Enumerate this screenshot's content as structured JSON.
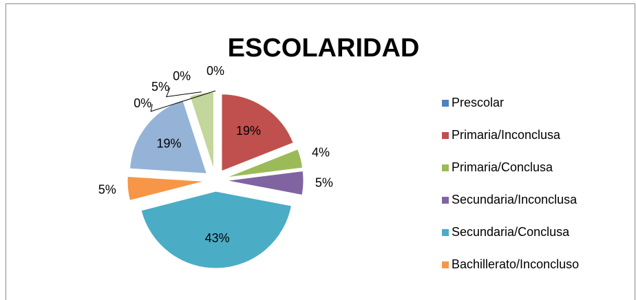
{
  "chart_data": {
    "type": "pie",
    "title": "ESCOLARIDAD",
    "categories": [
      "Prescolar",
      "Primaria/Inconclusa",
      "Primaria/Conclusa",
      "Secundaria/Inconclusa",
      "Secundaria/Conclusa",
      "Bachillerato/Inconcluso",
      null,
      null,
      null,
      null
    ],
    "values": [
      0,
      19,
      4,
      5,
      43,
      5,
      19,
      0,
      5,
      0
    ],
    "value_labels": [
      "0%",
      "19%",
      "4%",
      "5%",
      "43%",
      "5%",
      "19%",
      "0%",
      "5%",
      "0%"
    ],
    "colors": [
      "#4f81bd",
      "#c0504d",
      "#9bbb59",
      "#8064a2",
      "#4bacc6",
      "#f79646",
      "#95b3d7",
      "#d99694",
      "#c3d69b",
      "#b3a2c7"
    ],
    "legend": "right"
  }
}
